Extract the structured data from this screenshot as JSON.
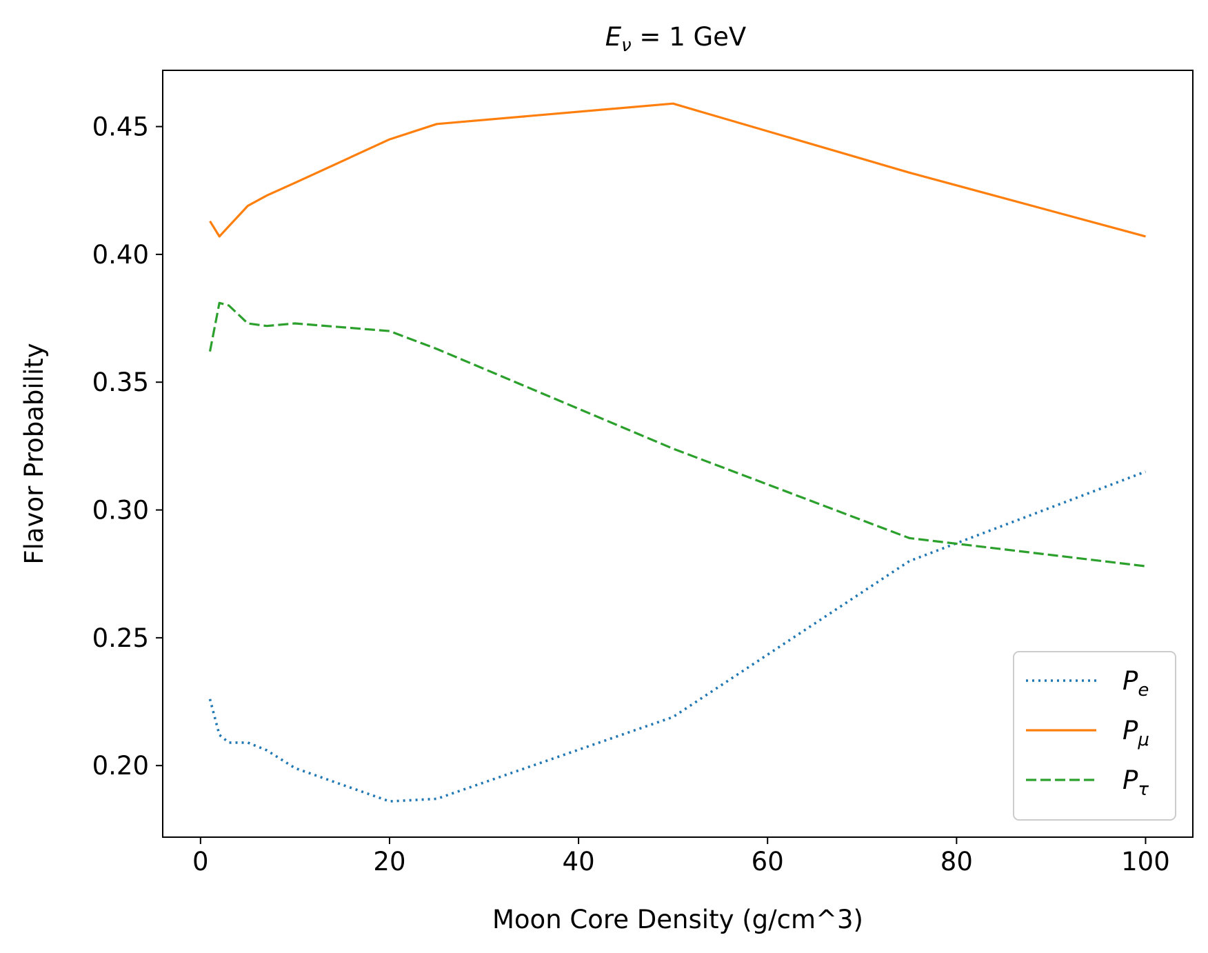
{
  "chart_data": {
    "type": "line",
    "title": {
      "main": "E",
      "sub": "ν",
      "rest": " = 1 GeV"
    },
    "xlabel": "Moon Core Density (g/cm^3)",
    "ylabel": "Flavor Probability",
    "xlim": [
      -4,
      105
    ],
    "ylim": [
      0.172,
      0.472
    ],
    "xticks": [
      0,
      20,
      40,
      60,
      80,
      100
    ],
    "xtick_labels": [
      "0",
      "20",
      "40",
      "60",
      "80",
      "100"
    ],
    "yticks": [
      0.2,
      0.25,
      0.3,
      0.35,
      0.4,
      0.45
    ],
    "ytick_labels": [
      "0.20",
      "0.25",
      "0.30",
      "0.35",
      "0.40",
      "0.45"
    ],
    "grid": false,
    "legend_position": "lower-right",
    "series": [
      {
        "name": "P_e",
        "label_main": "P",
        "label_sub": "e",
        "color": "#1f77b4",
        "style": "dotted",
        "x": [
          1,
          2,
          3,
          5,
          7,
          10,
          20,
          25,
          50,
          75,
          100
        ],
        "y": [
          0.226,
          0.212,
          0.209,
          0.209,
          0.206,
          0.199,
          0.186,
          0.187,
          0.219,
          0.28,
          0.315
        ]
      },
      {
        "name": "P_μ",
        "label_main": "P",
        "label_sub": "μ",
        "color": "#ff7f0e",
        "style": "solid",
        "x": [
          1,
          2,
          3,
          5,
          7,
          10,
          20,
          25,
          50,
          75,
          100
        ],
        "y": [
          0.413,
          0.407,
          0.411,
          0.419,
          0.423,
          0.428,
          0.445,
          0.451,
          0.459,
          0.432,
          0.407
        ]
      },
      {
        "name": "P_τ",
        "label_main": "P",
        "label_sub": "τ",
        "color": "#2ca02c",
        "style": "dashed",
        "x": [
          1,
          2,
          3,
          5,
          7,
          10,
          20,
          25,
          50,
          75,
          100
        ],
        "y": [
          0.362,
          0.381,
          0.38,
          0.373,
          0.372,
          0.373,
          0.37,
          0.363,
          0.324,
          0.289,
          0.278
        ]
      }
    ]
  }
}
